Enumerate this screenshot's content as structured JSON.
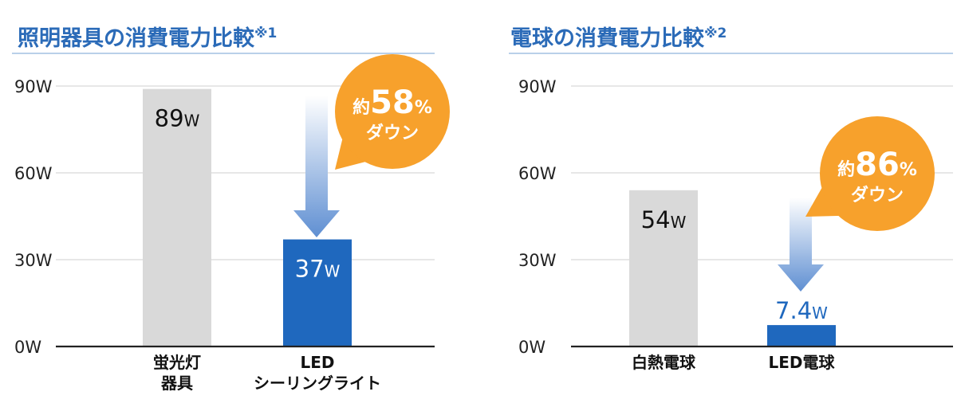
{
  "chart_data": [
    {
      "type": "bar",
      "title": "照明器具の消費電力比較",
      "title_note": "※1",
      "categories": [
        [
          "蛍光灯",
          "器具"
        ],
        [
          "LED",
          "シーリングライト"
        ]
      ],
      "values": [
        89,
        37
      ],
      "value_labels": [
        {
          "num": "89",
          "unit": "W"
        },
        {
          "num": "37",
          "unit": "W"
        }
      ],
      "ylim": [
        0,
        90
      ],
      "yticks": [
        0,
        30,
        60,
        90
      ],
      "ytick_labels": [
        "0W",
        "30W",
        "60W",
        "90W"
      ],
      "grid": true,
      "bar_colors": [
        "#d9d9d9",
        "#1f68be"
      ],
      "callout": {
        "prefix": "約",
        "num": "58",
        "unit": "%",
        "text": "ダウン",
        "color": "#f7a12c"
      }
    },
    {
      "type": "bar",
      "title": "電球の消費電力比較",
      "title_note": "※2",
      "categories": [
        [
          "白熱電球"
        ],
        [
          "LED電球"
        ]
      ],
      "values": [
        54,
        7.4
      ],
      "value_labels": [
        {
          "num": "54",
          "unit": "W"
        },
        {
          "num": "7.4",
          "unit": "W"
        }
      ],
      "ylim": [
        0,
        90
      ],
      "yticks": [
        0,
        30,
        60,
        90
      ],
      "ytick_labels": [
        "0W",
        "30W",
        "60W",
        "90W"
      ],
      "grid": true,
      "bar_colors": [
        "#d9d9d9",
        "#1f68be"
      ],
      "callout": {
        "prefix": "約",
        "num": "86",
        "unit": "%",
        "text": "ダウン",
        "color": "#f7a12c"
      }
    }
  ],
  "colors": {
    "title": "#2b6bb8",
    "title_rule": "#8fb3dc",
    "axis_text": "#222222",
    "grid": "#cfcfcf",
    "axis": "#222222",
    "arrow_top": "#ffffff",
    "arrow_bottom": "#5f8fd2"
  }
}
